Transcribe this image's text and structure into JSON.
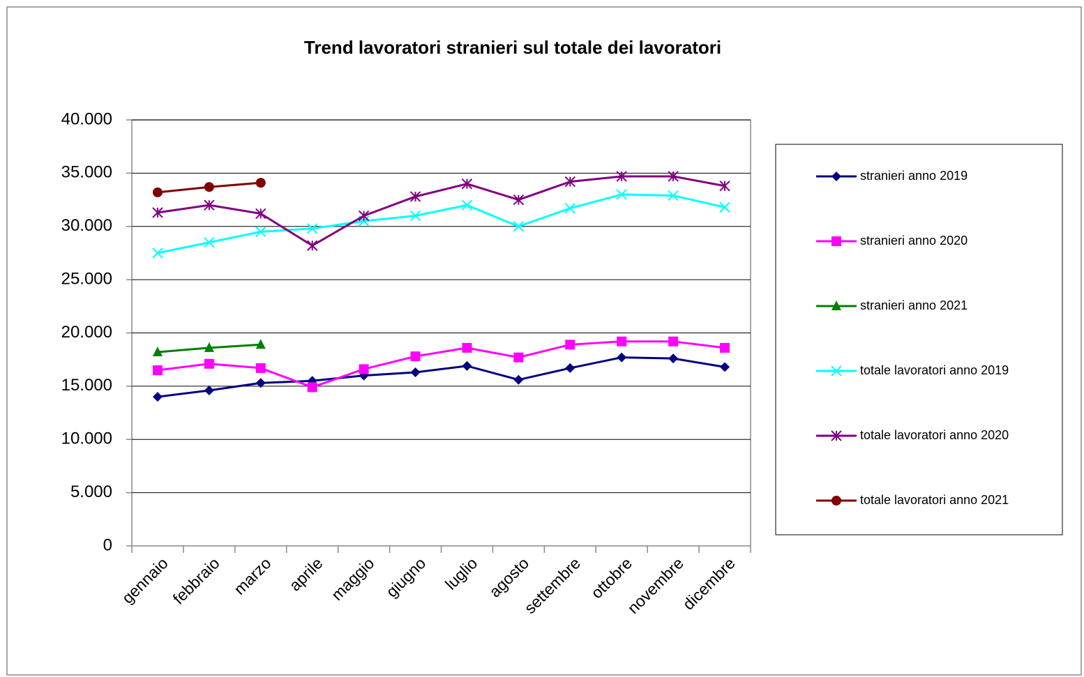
{
  "chart_data": {
    "type": "line",
    "title": "Trend lavoratori stranieri sul totale dei lavoratori",
    "categories": [
      "gennaio",
      "febbraio",
      "marzo",
      "aprile",
      "maggio",
      "giugno",
      "luglio",
      "agosto",
      "settembre",
      "ottobre",
      "novembre",
      "dicembre"
    ],
    "series": [
      {
        "name": "stranieri anno 2019",
        "color": "#000080",
        "marker": "diamond",
        "values": [
          14000,
          14600,
          15300,
          15500,
          16000,
          16300,
          16900,
          15600,
          16700,
          17700,
          17600,
          16800
        ]
      },
      {
        "name": "stranieri anno 2020",
        "color": "#ff00ff",
        "marker": "square",
        "values": [
          16500,
          17100,
          16700,
          14900,
          16600,
          17800,
          18600,
          17700,
          18900,
          19200,
          19200,
          18600
        ]
      },
      {
        "name": "stranieri anno 2021",
        "color": "#008000",
        "marker": "triangle",
        "values": [
          18200,
          18600,
          18900,
          null,
          null,
          null,
          null,
          null,
          null,
          null,
          null,
          null
        ]
      },
      {
        "name": "totale lavoratori anno 2019",
        "color": "#00ffff",
        "marker": "x",
        "values": [
          27500,
          28500,
          29500,
          29800,
          30500,
          31000,
          32000,
          30000,
          31700,
          33000,
          32900,
          31800
        ]
      },
      {
        "name": "totale lavoratori anno 2020",
        "color": "#800080",
        "marker": "star",
        "values": [
          31300,
          32000,
          31200,
          28200,
          31000,
          32800,
          34000,
          32500,
          34200,
          34700,
          34700,
          33800
        ]
      },
      {
        "name": "totale lavoratori anno 2021",
        "color": "#800000",
        "marker": "circle",
        "values": [
          33200,
          33700,
          34100,
          null,
          null,
          null,
          null,
          null,
          null,
          null,
          null,
          null
        ]
      }
    ],
    "ylim": [
      0,
      40000
    ],
    "yticks": [
      0,
      {
        "value": 5000,
        "label": "5.000"
      },
      {
        "value": 10000,
        "label": "10.000"
      },
      {
        "value": 15000,
        "label": "15.000"
      },
      {
        "value": 20000,
        "label": "20.000"
      },
      {
        "value": 25000,
        "label": "25.000"
      },
      {
        "value": 30000,
        "label": "30.000"
      },
      {
        "value": 35000,
        "label": "35.000"
      },
      {
        "value": 40000,
        "label": "40.000"
      }
    ],
    "grid": true,
    "legend": "right"
  }
}
